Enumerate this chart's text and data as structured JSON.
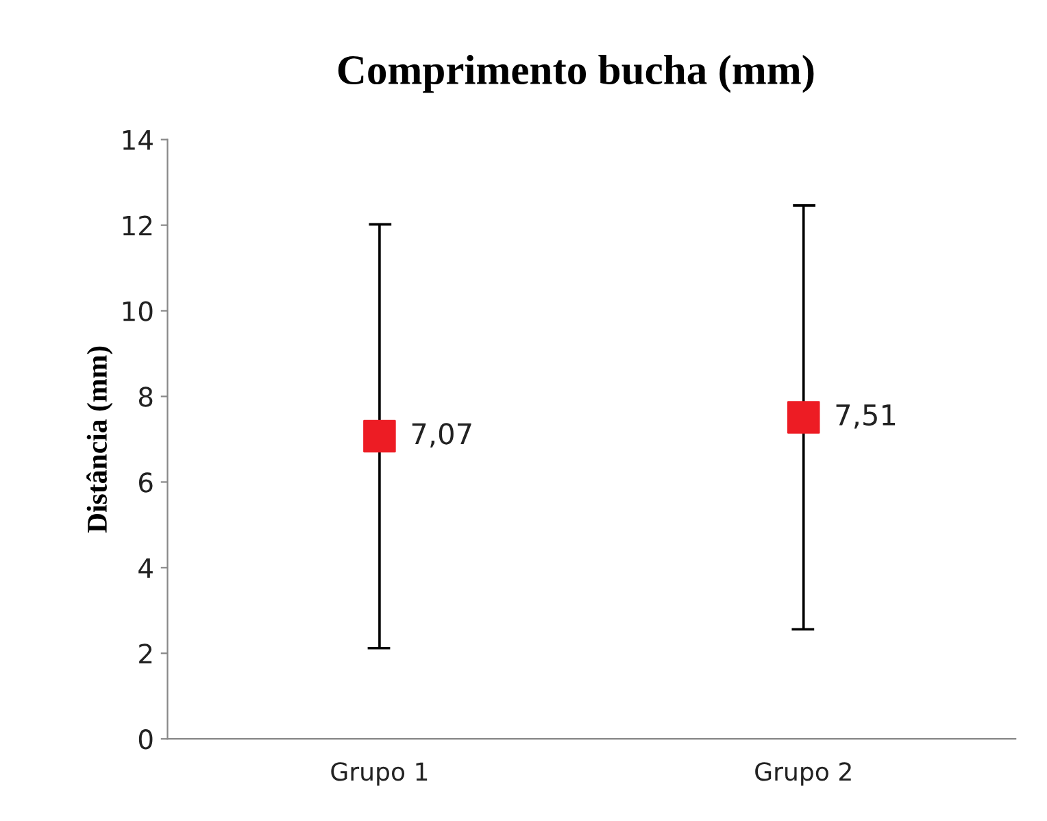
{
  "chart_data": {
    "type": "scatter",
    "title": "Comprimento bucha (mm)",
    "ylabel": "Distância (mm)",
    "categories": [
      "Grupo 1",
      "Grupo 2"
    ],
    "values": [
      7.07,
      7.51
    ],
    "errors": [
      4.95,
      4.95
    ],
    "value_labels": [
      "7,07",
      "7,51"
    ],
    "color": "#ed1c24",
    "marker": "square",
    "ylim": [
      0,
      14
    ],
    "yticks": [
      0,
      2,
      4,
      6,
      8,
      10,
      12,
      14
    ],
    "grid": false,
    "legend": false
  }
}
